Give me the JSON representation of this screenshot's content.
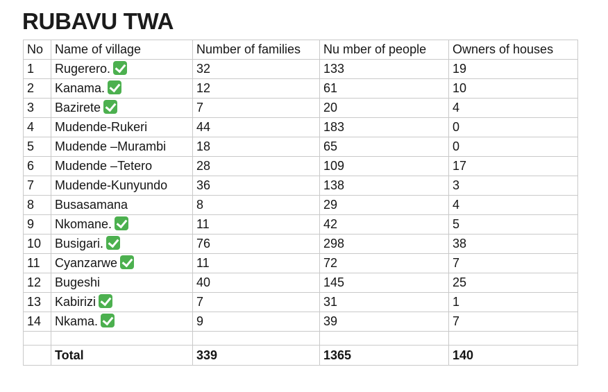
{
  "title": "RUBAVU TWA",
  "table": {
    "headers": [
      "No",
      "Name of village",
      "Number of families",
      "Nu mber of people",
      "Owners of houses"
    ],
    "rows": [
      {
        "no": "1",
        "name": "Rugerero.",
        "checked": true,
        "families": "32",
        "people": "133",
        "owners": "19"
      },
      {
        "no": "2",
        "name": "Kanama.",
        "checked": true,
        "families": "12",
        "people": "61",
        "owners": "10"
      },
      {
        "no": "3",
        "name": "Bazirete",
        "checked": true,
        "families": "7",
        "people": "20",
        "owners": "4"
      },
      {
        "no": "4",
        "name": "Mudende-Rukeri",
        "checked": false,
        "families": "44",
        "people": "183",
        "owners": "0"
      },
      {
        "no": "5",
        "name": "Mudende –Murambi",
        "checked": false,
        "families": "18",
        "people": "65",
        "owners": "0"
      },
      {
        "no": "6",
        "name": "Mudende –Tetero",
        "checked": false,
        "families": "28",
        "people": "109",
        "owners": "17"
      },
      {
        "no": "7",
        "name": "Mudende-Kunyundo",
        "checked": false,
        "families": "36",
        "people": "138",
        "owners": "3"
      },
      {
        "no": "8",
        "name": "Busasamana",
        "checked": false,
        "families": "8",
        "people": "29",
        "owners": "4"
      },
      {
        "no": "9",
        "name": "Nkomane.",
        "checked": true,
        "families": "11",
        "people": "42",
        "owners": "5"
      },
      {
        "no": "10",
        "name": "Busigari.",
        "checked": true,
        "families": "76",
        "people": "298",
        "owners": "38"
      },
      {
        "no": "11",
        "name": "Cyanzarwe",
        "checked": true,
        "families": "11",
        "people": "72",
        "owners": "7"
      },
      {
        "no": "12",
        "name": "Bugeshi",
        "checked": false,
        "families": "40",
        "people": "145",
        "owners": "25"
      },
      {
        "no": "13",
        "name": "Kabirizi",
        "checked": true,
        "families": "7",
        "people": "31",
        "owners": "1"
      },
      {
        "no": "14",
        "name": "Nkama.",
        "checked": true,
        "families": "9",
        "people": "39",
        "owners": "7"
      }
    ],
    "total": {
      "label": "Total",
      "families": "339",
      "people": "1365",
      "owners": "140"
    }
  },
  "colors": {
    "check_mark": "#4cb04f",
    "grid_line": "#c9c9c9"
  },
  "icons": {
    "check": "white-heavy-check-mark-icon"
  }
}
